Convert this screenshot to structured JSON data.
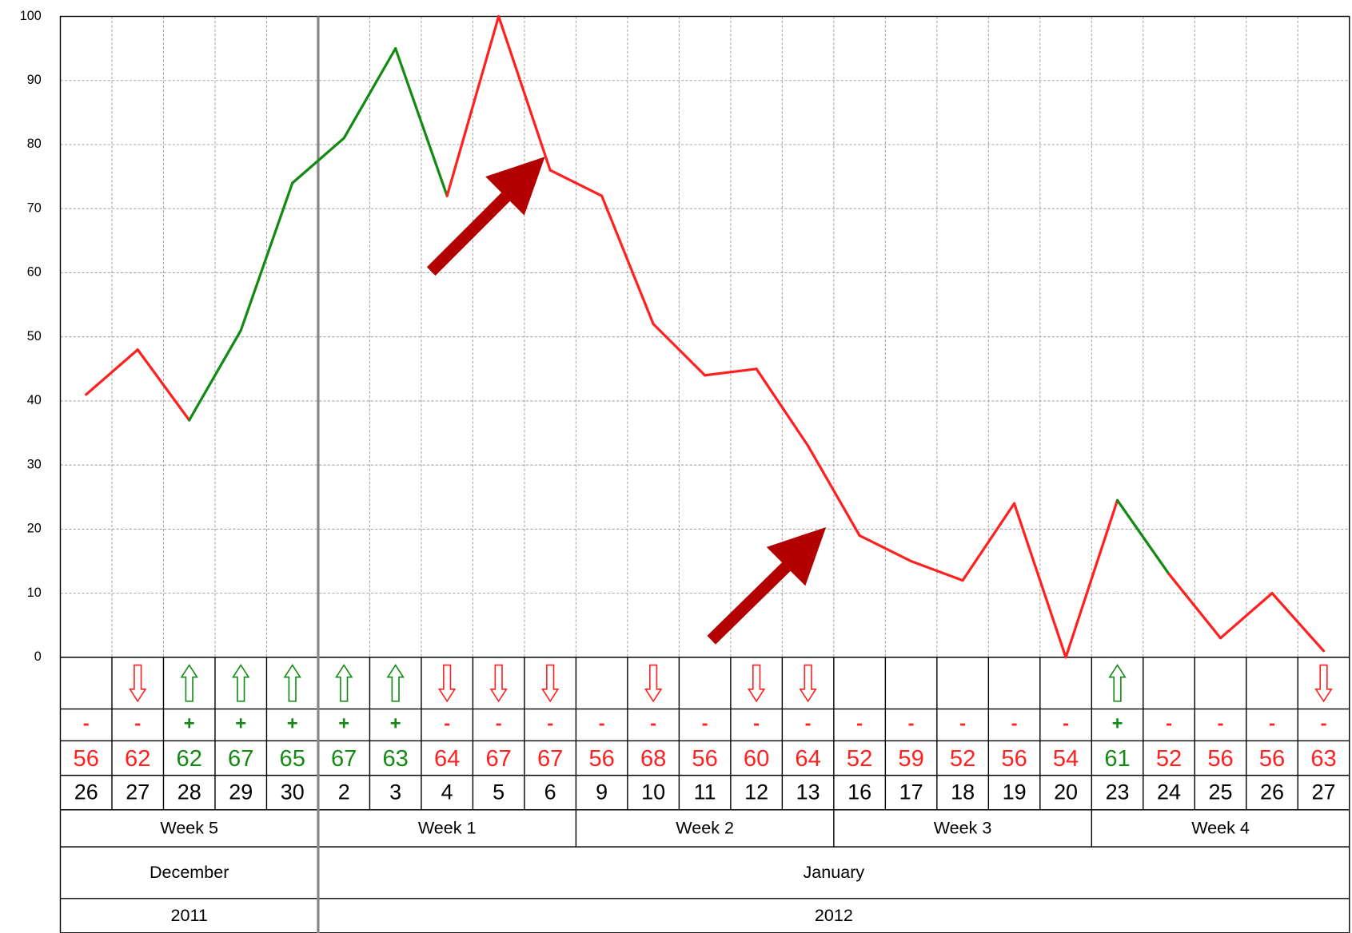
{
  "chart_data": {
    "type": "line",
    "categories": [
      "26",
      "27",
      "28",
      "29",
      "30",
      "2",
      "3",
      "4",
      "5",
      "6",
      "9",
      "10",
      "11",
      "12",
      "13",
      "16",
      "17",
      "18",
      "19",
      "20",
      "23",
      "24",
      "25",
      "26",
      "27"
    ],
    "values": [
      41,
      48,
      37,
      51,
      74,
      81,
      95,
      72,
      100,
      76,
      72,
      52,
      44,
      45,
      33,
      19,
      15,
      12,
      24,
      0,
      24.5,
      13,
      3,
      10,
      1
    ],
    "signs": [
      "-",
      "-",
      "+",
      "+",
      "+",
      "+",
      "+",
      "-",
      "-",
      "-",
      "-",
      "-",
      "-",
      "-",
      "-",
      "-",
      "-",
      "-",
      "-",
      "-",
      "+",
      "-",
      "-",
      "-",
      "-"
    ],
    "scores": [
      56,
      62,
      62,
      67,
      65,
      67,
      63,
      64,
      67,
      67,
      56,
      68,
      56,
      60,
      64,
      52,
      59,
      52,
      56,
      54,
      61,
      52,
      56,
      56,
      63
    ],
    "arrows": [
      null,
      "down",
      "up",
      "up",
      "up",
      "up",
      "up",
      "down",
      "down",
      "down",
      null,
      "down",
      null,
      "down",
      "down",
      null,
      null,
      null,
      null,
      null,
      "up",
      null,
      null,
      null,
      "down"
    ],
    "weeks": [
      {
        "label": "Week 5",
        "span": 5
      },
      {
        "label": "Week 1",
        "span": 5
      },
      {
        "label": "Week 2",
        "span": 5
      },
      {
        "label": "Week 3",
        "span": 5
      },
      {
        "label": "Week 4",
        "span": 5
      }
    ],
    "months": [
      {
        "label": "December",
        "span": 5
      },
      {
        "label": "January",
        "span": 20
      }
    ],
    "years": [
      {
        "label": "2011",
        "span": 5
      },
      {
        "label": "2012",
        "span": 20
      }
    ],
    "up_color": "#138a13",
    "down_color": "#ff2020",
    "ylim": [
      0,
      100
    ],
    "yticks": [
      0,
      10,
      20,
      30,
      40,
      50,
      60,
      70,
      80,
      90,
      100
    ],
    "grid": true
  }
}
